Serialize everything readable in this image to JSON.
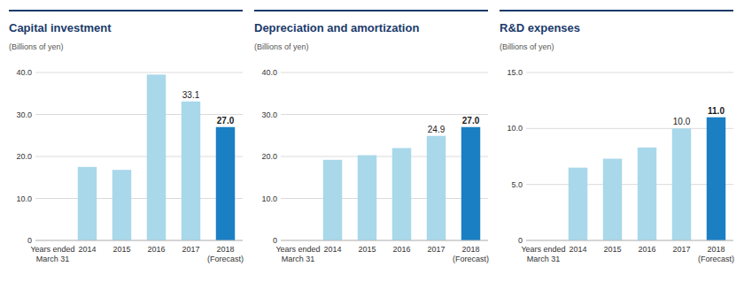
{
  "chart_data": [
    {
      "type": "bar",
      "title": "Capital investment",
      "y_label": "(Billions of yen)",
      "x_label": "Years ended\nMarch 31",
      "categories": [
        "2014",
        "2015",
        "2016",
        "2017",
        "2018\n(Forecast)"
      ],
      "values": [
        17.5,
        16.8,
        39.5,
        33.1,
        27.0
      ],
      "value_labels": [
        null,
        null,
        null,
        "33.1",
        "27.0"
      ],
      "colors": [
        "#a8d8ea",
        "#a8d8ea",
        "#a8d8ea",
        "#a8d8ea",
        "#1b7fc4"
      ],
      "ylim": [
        0,
        40.0
      ],
      "yticks": [
        0,
        {
          "value": 10.0,
          "label": "10.0"
        },
        {
          "value": 20.0,
          "label": "20.0"
        },
        {
          "value": 30.0,
          "label": "30.0"
        },
        {
          "value": 40.0,
          "label": "40.0"
        }
      ],
      "grid": true
    },
    {
      "type": "bar",
      "title": "Depreciation and amortization",
      "y_label": "(Billions of yen)",
      "x_label": "Years ended\nMarch 31",
      "categories": [
        "2014",
        "2015",
        "2016",
        "2017",
        "2018\n(Forecast)"
      ],
      "values": [
        19.2,
        20.3,
        22.0,
        24.9,
        27.0
      ],
      "value_labels": [
        null,
        null,
        null,
        "24.9",
        "27.0"
      ],
      "colors": [
        "#a8d8ea",
        "#a8d8ea",
        "#a8d8ea",
        "#a8d8ea",
        "#1b7fc4"
      ],
      "ylim": [
        0,
        40.0
      ],
      "yticks": [
        0,
        {
          "value": 10.0,
          "label": "10.0"
        },
        {
          "value": 20.0,
          "label": "20.0"
        },
        {
          "value": 30.0,
          "label": "30.0"
        },
        {
          "value": 40.0,
          "label": "40.0"
        }
      ],
      "grid": true
    },
    {
      "type": "bar",
      "title": "R&D expenses",
      "y_label": "(Billions of yen)",
      "x_label": "Years ended\nMarch 31",
      "categories": [
        "2014",
        "2015",
        "2016",
        "2017",
        "2018\n(Forecast)"
      ],
      "values": [
        6.5,
        7.3,
        8.3,
        10.0,
        11.0
      ],
      "value_labels": [
        null,
        null,
        null,
        "10.0",
        "11.0"
      ],
      "colors": [
        "#a8d8ea",
        "#a8d8ea",
        "#a8d8ea",
        "#a8d8ea",
        "#1b7fc4"
      ],
      "ylim": [
        0,
        15.0
      ],
      "yticks": [
        0,
        {
          "value": 5.0,
          "label": "5.0"
        },
        {
          "value": 10.0,
          "label": "10.0"
        },
        {
          "value": 15.0,
          "label": "15.0"
        }
      ],
      "grid": true
    }
  ]
}
